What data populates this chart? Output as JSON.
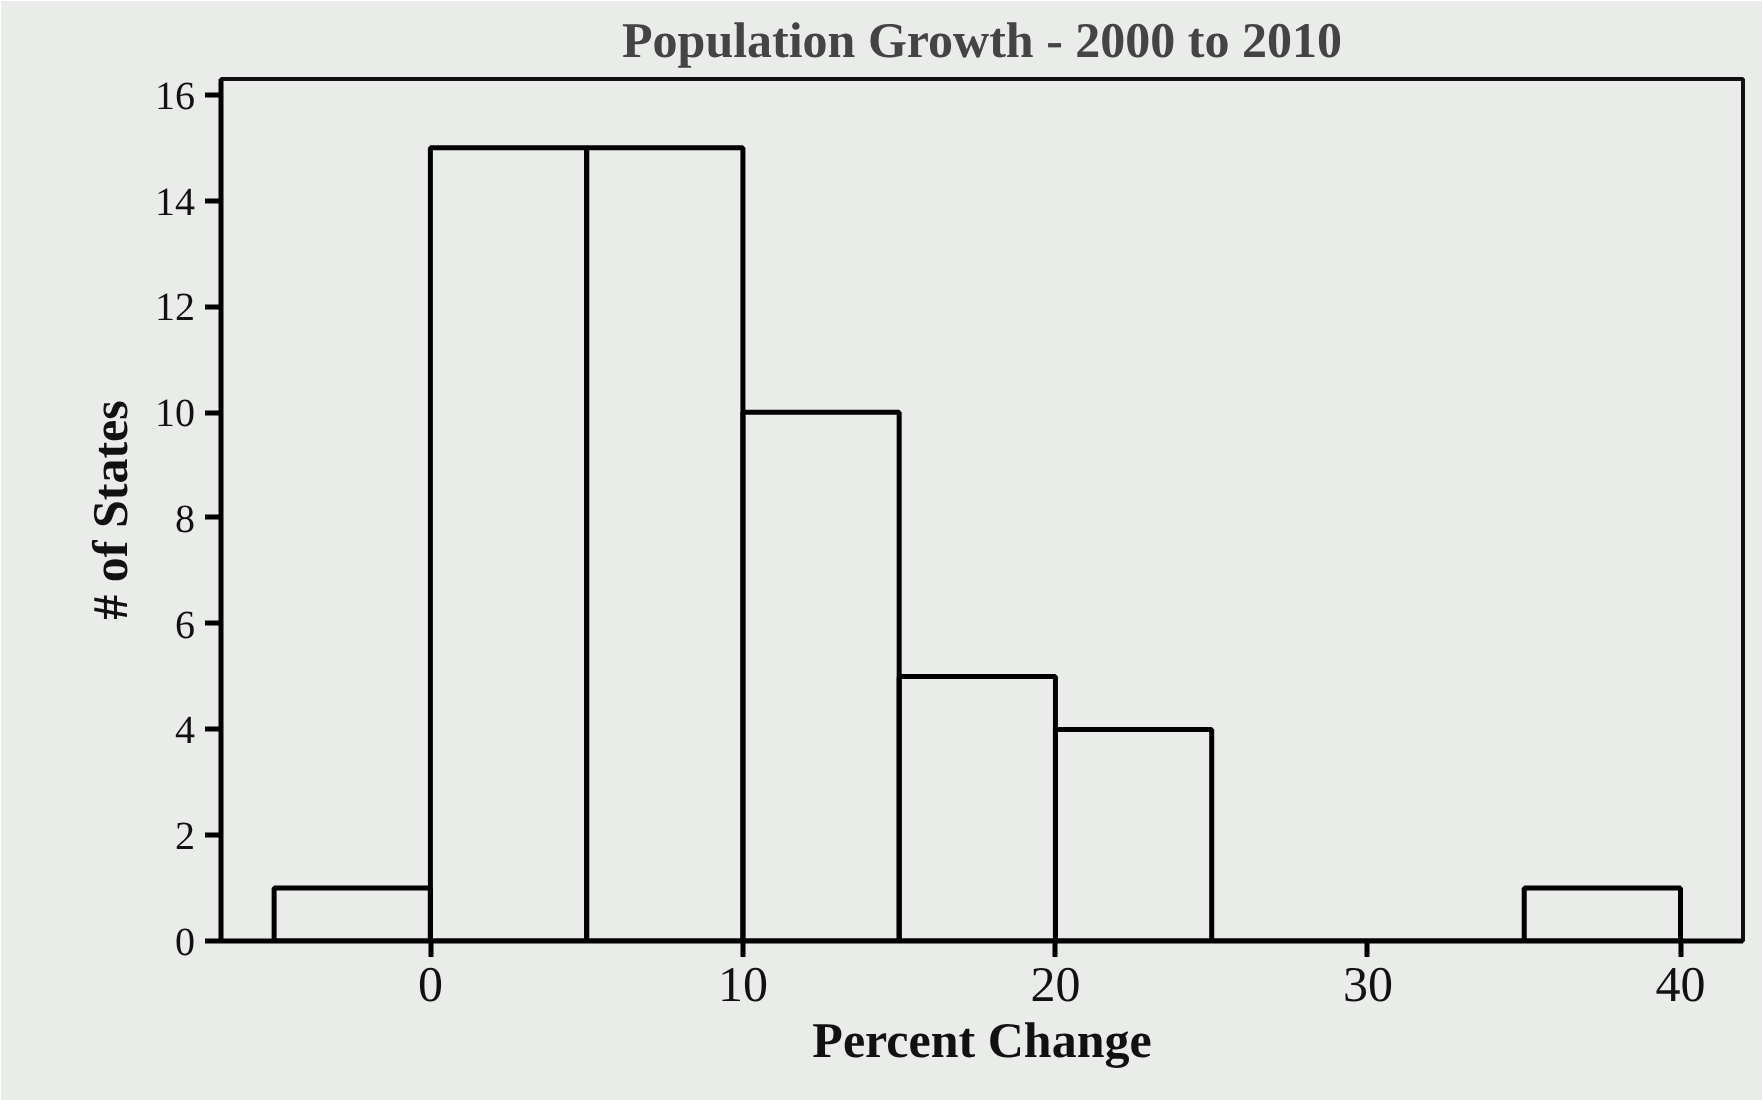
{
  "chart_data": {
    "type": "histogram",
    "title": "Population Growth - 2000 to 2010",
    "xlabel": "Percent Change",
    "ylabel": "# of States",
    "bins": [
      -5,
      0,
      5,
      10,
      15,
      20,
      25,
      30,
      35,
      40
    ],
    "values": [
      1,
      15,
      15,
      10,
      5,
      4,
      0,
      0,
      1
    ],
    "color": "#000000",
    "xlim": [
      -6.7,
      42
    ],
    "xticks": [
      0,
      10,
      20,
      30,
      40
    ],
    "ylim": [
      0,
      16.3
    ],
    "yticks": [
      0,
      2,
      4,
      6,
      8,
      10,
      12,
      14,
      16
    ],
    "grid": false
  }
}
